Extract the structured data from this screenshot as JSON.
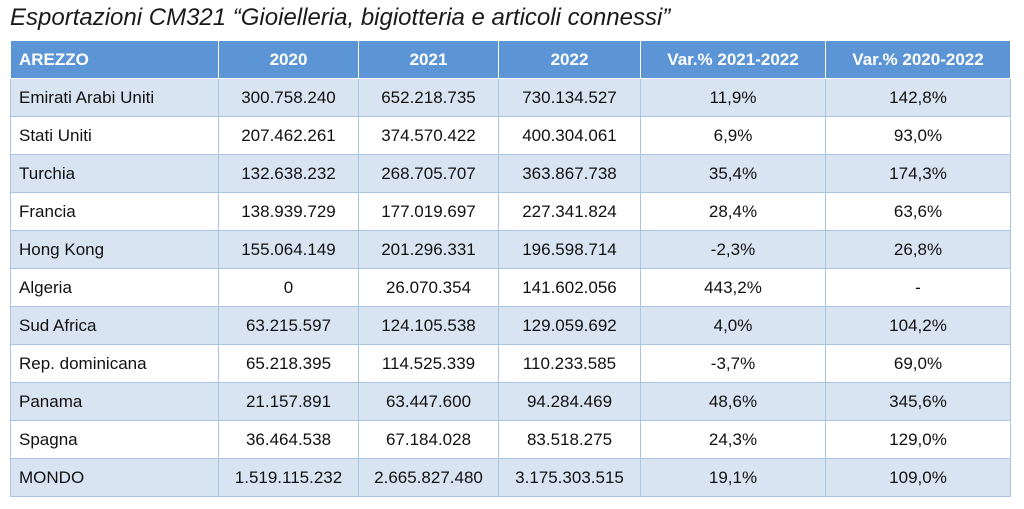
{
  "title": "Esportazioni CM321 “Gioielleria, bigiotteria e articoli connessi”",
  "table": {
    "headers": [
      "AREZZO",
      "2020",
      "2021",
      "2022",
      "Var.% 2021-2022",
      "Var.% 2020-2022"
    ],
    "rows": [
      [
        "Emirati Arabi Uniti",
        "300.758.240",
        "652.218.735",
        "730.134.527",
        "11,9%",
        "142,8%"
      ],
      [
        "Stati Uniti",
        "207.462.261",
        "374.570.422",
        "400.304.061",
        "6,9%",
        "93,0%"
      ],
      [
        "Turchia",
        "132.638.232",
        "268.705.707",
        "363.867.738",
        "35,4%",
        "174,3%"
      ],
      [
        "Francia",
        "138.939.729",
        "177.019.697",
        "227.341.824",
        "28,4%",
        "63,6%"
      ],
      [
        "Hong Kong",
        "155.064.149",
        "201.296.331",
        "196.598.714",
        "-2,3%",
        "26,8%"
      ],
      [
        "Algeria",
        "0",
        "26.070.354",
        "141.602.056",
        "443,2%",
        "-"
      ],
      [
        "Sud Africa",
        "63.215.597",
        "124.105.538",
        "129.059.692",
        "4,0%",
        "104,2%"
      ],
      [
        "Rep. dominicana",
        "65.218.395",
        "114.525.339",
        "110.233.585",
        "-3,7%",
        "69,0%"
      ],
      [
        "Panama",
        "21.157.891",
        "63.447.600",
        "94.284.469",
        "48,6%",
        "345,6%"
      ],
      [
        "Spagna",
        "36.464.538",
        "67.184.028",
        "83.518.275",
        "24,3%",
        "129,0%"
      ],
      [
        "MONDO",
        "1.519.115.232",
        "2.665.827.480",
        "3.175.303.515",
        "19,1%",
        "109,0%"
      ]
    ]
  },
  "colors": {
    "header_bg": "#5b95d6",
    "band_bg": "#d9e4f2",
    "border": "#a9c4e4"
  }
}
